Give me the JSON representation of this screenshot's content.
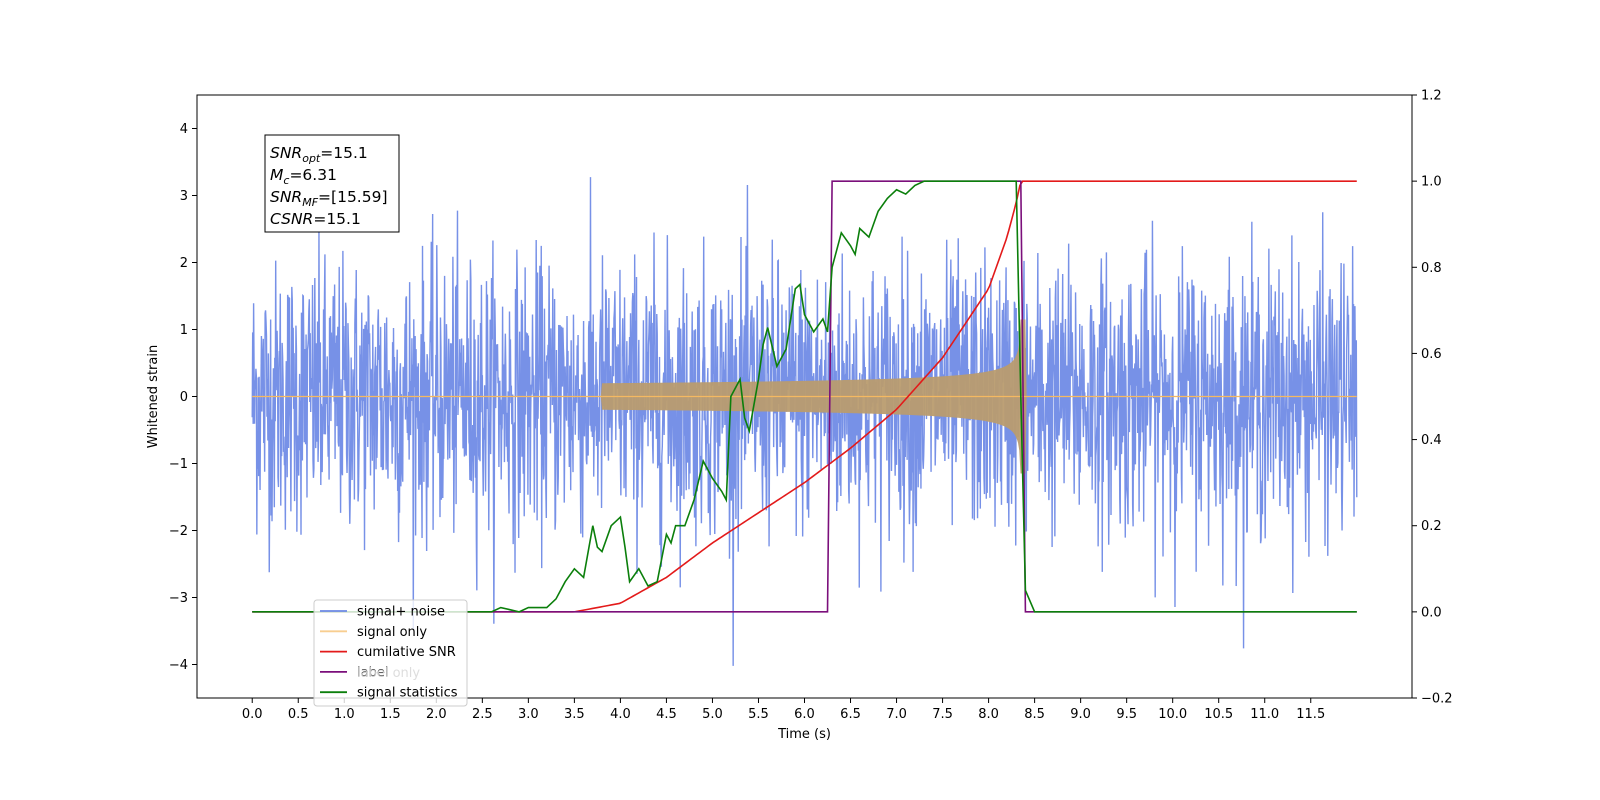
{
  "chart_data": {
    "type": "line",
    "title": "",
    "xlabel": "Time (s)",
    "ylabel": "Whitened strain",
    "ylabel_right": "",
    "xlim": [
      -0.6,
      12.6
    ],
    "ylim_left": [
      -4.5,
      4.5
    ],
    "ylim_right": [
      -0.2,
      1.2
    ],
    "x_ticks": [
      "0.0",
      "0.5",
      "1.0",
      "1.5",
      "2.0",
      "2.5",
      "3.0",
      "3.5",
      "4.0",
      "4.5",
      "5.0",
      "5.5",
      "6.0",
      "6.5",
      "7.0",
      "7.5",
      "8.0",
      "8.5",
      "9.0",
      "9.5",
      "10.0",
      "10.5",
      "11.0",
      "11.5"
    ],
    "y_ticks_left": [
      "4",
      "3",
      "2",
      "1",
      "0",
      "−1",
      "−2",
      "−3",
      "−4"
    ],
    "y_ticks_right": [
      "1.2",
      "1.0",
      "0.8",
      "0.6",
      "0.4",
      "0.2",
      "0.0",
      "−0.2"
    ],
    "grid": false,
    "legend_position": "lower-left",
    "annotation": {
      "lines": [
        {
          "main": "SNR",
          "sub": "opt",
          "rest": "=15.1"
        },
        {
          "main": "M",
          "sub": "c",
          "rest": "=6.31"
        },
        {
          "main": "SNR",
          "sub": "MF",
          "rest": "=[15.59]"
        },
        {
          "main": "CSNR",
          "sub": "",
          "rest": "=15.1"
        }
      ]
    },
    "series": [
      {
        "name": "signal+ noise",
        "axis": "left",
        "color": "#6b88e5",
        "t_range": [
          0.0,
          12.0
        ],
        "noise_sigma": 1.0,
        "note_values": "dense noise trace, amplitude approx within [-4.1, 4.1]"
      },
      {
        "name": "signal only",
        "axis": "left",
        "color": "#f5b961",
        "chirp_start": 3.8,
        "merger_time": 8.35,
        "peak_amplitude": 1.15
      },
      {
        "name": "cumilative SNR",
        "axis": "right",
        "color": "#e31a1a",
        "x": [
          0.0,
          3.5,
          4.0,
          4.5,
          5.0,
          5.5,
          6.0,
          6.5,
          7.0,
          7.5,
          8.0,
          8.2,
          8.3,
          8.35,
          8.5,
          12.0
        ],
        "values": [
          0.0,
          0.0,
          0.02,
          0.08,
          0.16,
          0.23,
          0.3,
          0.38,
          0.47,
          0.59,
          0.75,
          0.87,
          0.95,
          1.0,
          1.0,
          1.0
        ]
      },
      {
        "name": "label",
        "axis": "right",
        "color": "#7b0f7b",
        "x": [
          0.0,
          6.25,
          6.3,
          8.35,
          8.4,
          12.0
        ],
        "values": [
          0.0,
          0.0,
          1.0,
          1.0,
          0.0,
          0.0
        ]
      },
      {
        "name": "signal statistics",
        "axis": "right",
        "color": "#0b7f0b",
        "x": [
          0.0,
          2.6,
          2.7,
          2.9,
          3.0,
          3.2,
          3.3,
          3.4,
          3.5,
          3.6,
          3.7,
          3.75,
          3.8,
          3.9,
          4.0,
          4.05,
          4.1,
          4.2,
          4.3,
          4.4,
          4.5,
          4.55,
          4.6,
          4.7,
          4.8,
          4.9,
          5.0,
          5.1,
          5.15,
          5.2,
          5.3,
          5.35,
          5.4,
          5.45,
          5.5,
          5.55,
          5.6,
          5.7,
          5.8,
          5.9,
          5.95,
          6.0,
          6.1,
          6.2,
          6.25,
          6.3,
          6.4,
          6.5,
          6.55,
          6.6,
          6.7,
          6.8,
          6.9,
          7.0,
          7.1,
          7.2,
          7.3,
          7.5,
          8.0,
          8.3,
          8.35,
          8.4,
          8.5,
          12.0
        ],
        "values": [
          0.0,
          0.0,
          0.01,
          0.0,
          0.01,
          0.01,
          0.03,
          0.07,
          0.1,
          0.08,
          0.2,
          0.15,
          0.14,
          0.2,
          0.22,
          0.15,
          0.07,
          0.1,
          0.06,
          0.07,
          0.18,
          0.16,
          0.2,
          0.2,
          0.26,
          0.35,
          0.31,
          0.28,
          0.26,
          0.5,
          0.54,
          0.45,
          0.42,
          0.48,
          0.54,
          0.62,
          0.66,
          0.57,
          0.61,
          0.75,
          0.76,
          0.69,
          0.65,
          0.68,
          0.65,
          0.8,
          0.88,
          0.85,
          0.83,
          0.89,
          0.87,
          0.93,
          0.96,
          0.98,
          0.97,
          0.99,
          1.0,
          1.0,
          1.0,
          1.0,
          0.5,
          0.05,
          0.0,
          0.0
        ]
      },
      {
        "name": "label only",
        "axis": "right",
        "color": "#d9d9d9",
        "hidden_in_plot": true
      }
    ]
  }
}
